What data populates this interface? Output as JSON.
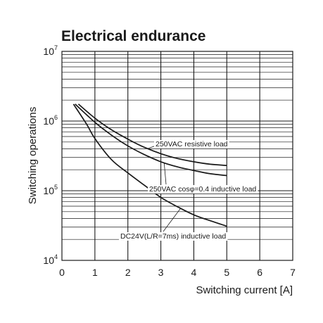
{
  "chart_data": {
    "type": "line",
    "title": "Electrical endurance",
    "xlabel": "Switching current [A]",
    "ylabel": "Switching operations",
    "xlim": [
      0,
      7
    ],
    "ylim": [
      10000,
      10000000
    ],
    "y_scale": "log",
    "grid": true,
    "x_ticks": [
      "0",
      "1",
      "2",
      "3",
      "4",
      "5",
      "6",
      "7"
    ],
    "y_ticks": [
      {
        "base": "10",
        "exp": "4",
        "value": 10000
      },
      {
        "base": "10",
        "exp": "5",
        "value": 100000
      },
      {
        "base": "10",
        "exp": "6",
        "value": 1000000
      },
      {
        "base": "10",
        "exp": "7",
        "value": 10000000
      }
    ],
    "series": [
      {
        "name": "250VAC resistive load",
        "x": [
          0.5,
          1,
          1.5,
          2,
          2.5,
          3,
          3.5,
          4,
          4.5,
          5
        ],
        "y": [
          1750000,
          1100000,
          750000,
          550000,
          420000,
          340000,
          290000,
          260000,
          240000,
          230000
        ]
      },
      {
        "name": "250VAC cosφ=0.4 inductive load",
        "x": [
          0.4,
          1,
          1.5,
          2,
          2.5,
          3,
          3.5,
          4,
          4.5,
          5
        ],
        "y": [
          1750000,
          960000,
          630000,
          440000,
          330000,
          260000,
          220000,
          195000,
          175000,
          165000
        ]
      },
      {
        "name": "DC24V(L/R=7ms) inductive load",
        "x": [
          0.35,
          0.75,
          1,
          1.5,
          2,
          2.5,
          3,
          3.5,
          4,
          4.5,
          5
        ],
        "y": [
          1750000,
          900000,
          560000,
          280000,
          180000,
          120000,
          80000,
          59000,
          45000,
          37000,
          31000
        ]
      }
    ]
  }
}
